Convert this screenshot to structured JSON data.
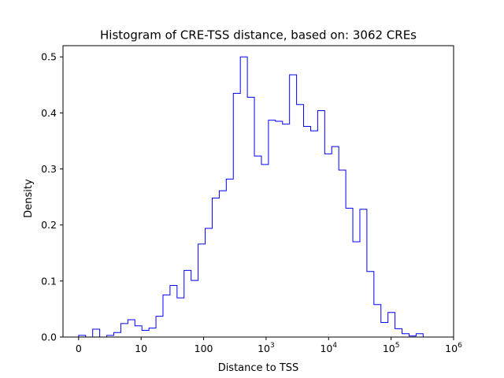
{
  "chart_data": {
    "type": "histogram",
    "title": "Histogram of CRE-TSS distance, based on: 3062 CREs",
    "xlabel": "Distance to TSS",
    "ylabel": "Density",
    "x_scale": "symlog",
    "xlim": [
      -0.25,
      6
    ],
    "ylim": [
      0,
      0.52
    ],
    "x_ticks": [
      {
        "value": 0,
        "label": "0"
      },
      {
        "value": 1,
        "label": "10"
      },
      {
        "value": 2,
        "label": "100"
      },
      {
        "value": 3,
        "label": "10",
        "exp": "3"
      },
      {
        "value": 4,
        "label": "10",
        "exp": "4"
      },
      {
        "value": 5,
        "label": "10",
        "exp": "5"
      },
      {
        "value": 6,
        "label": "10",
        "exp": "6"
      }
    ],
    "y_ticks": [
      {
        "value": 0.0,
        "label": "0.0"
      },
      {
        "value": 0.1,
        "label": "0.1"
      },
      {
        "value": 0.2,
        "label": "0.2"
      },
      {
        "value": 0.3,
        "label": "0.3"
      },
      {
        "value": 0.4,
        "label": "0.4"
      },
      {
        "value": 0.5,
        "label": "0.5"
      }
    ],
    "bin_edges_log10": [
      0.0,
      0.1125,
      0.225,
      0.3375,
      0.45,
      0.5625,
      0.675,
      0.7875,
      0.9,
      1.0125,
      1.125,
      1.2375,
      1.35,
      1.4625,
      1.575,
      1.6875,
      1.8,
      1.9125,
      2.025,
      2.1375,
      2.25,
      2.3625,
      2.475,
      2.5875,
      2.7,
      2.8125,
      2.925,
      3.0375,
      3.15,
      3.2625,
      3.375,
      3.4875,
      3.6,
      3.7125,
      3.825,
      3.9375,
      4.05,
      4.1625,
      4.275,
      4.3875,
      4.5,
      4.6125,
      4.725,
      4.8375,
      4.95,
      5.0625,
      5.175,
      5.2875,
      5.4,
      5.5125
    ],
    "densities": [
      0.003,
      0.0,
      0.014,
      0.0,
      0.003,
      0.008,
      0.024,
      0.031,
      0.02,
      0.012,
      0.016,
      0.037,
      0.075,
      0.092,
      0.07,
      0.119,
      0.101,
      0.166,
      0.194,
      0.248,
      0.261,
      0.282,
      0.435,
      0.5,
      0.428,
      0.323,
      0.308,
      0.387,
      0.385,
      0.38,
      0.468,
      0.415,
      0.376,
      0.368,
      0.404,
      0.327,
      0.34,
      0.298,
      0.23,
      0.17,
      0.228,
      0.117,
      0.058,
      0.026,
      0.044,
      0.015,
      0.006,
      0.002,
      0.006
    ],
    "line_color": "#0000ff",
    "grid": false
  }
}
